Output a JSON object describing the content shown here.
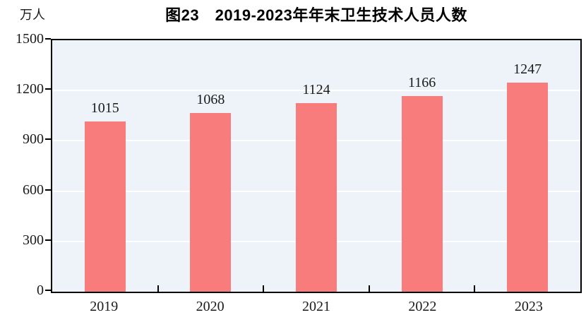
{
  "chart_data": {
    "type": "bar",
    "title": "图23　2019-2023年年末卫生技术人员人数",
    "ylabel": "万人",
    "xlabel": "",
    "categories": [
      "2019",
      "2020",
      "2021",
      "2022",
      "2023"
    ],
    "values": [
      1015,
      1068,
      1124,
      1166,
      1247
    ],
    "ylim": [
      0,
      1500
    ],
    "yticks": [
      0,
      300,
      600,
      900,
      1200,
      1500
    ],
    "grid": "horizontal",
    "legend": "none",
    "bar_value_labels": [
      "1015",
      "1068",
      "1124",
      "1166",
      "1247"
    ],
    "colors": {
      "bar": "#f97c7c",
      "plot_background": "#edf3f8",
      "gridline": "#ffffff",
      "axis": "#000000",
      "text": "#1a1a1a"
    }
  }
}
